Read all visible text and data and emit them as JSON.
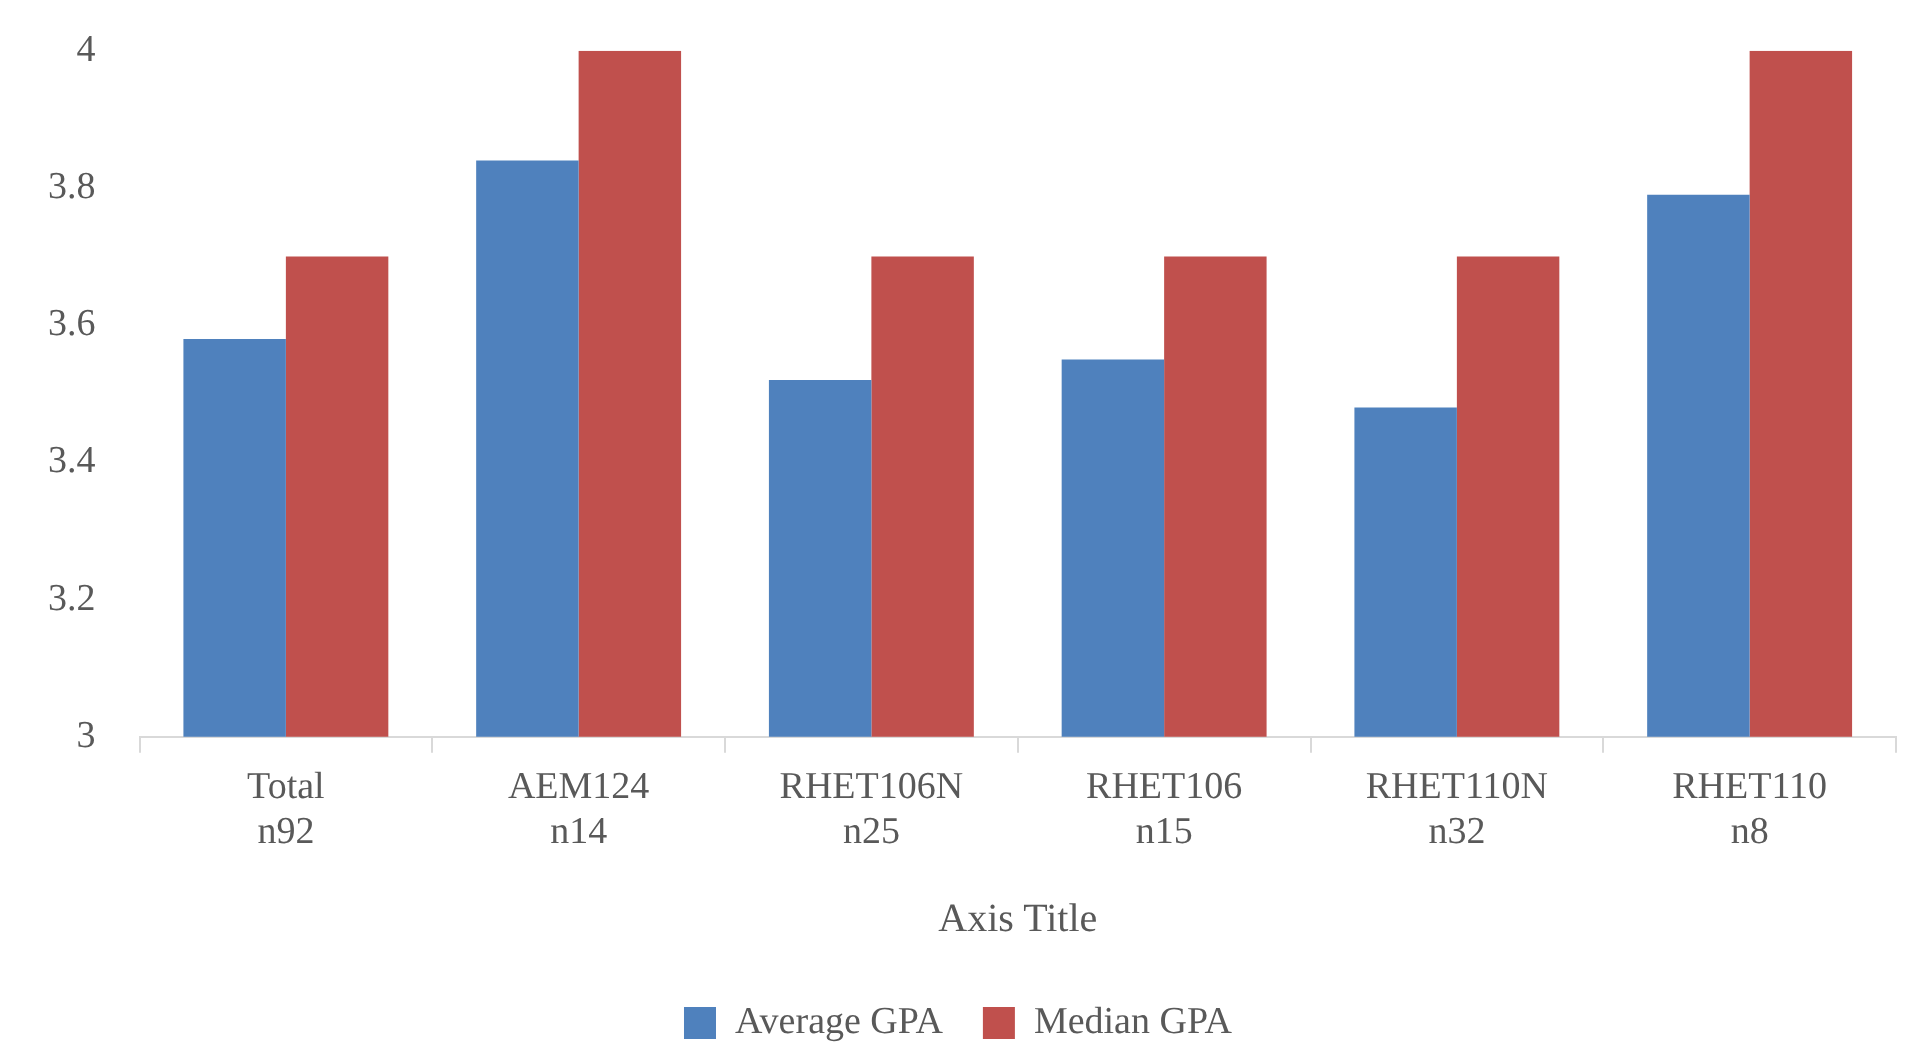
{
  "chart_data": {
    "type": "bar",
    "xlabel": "Axis Title",
    "categories": [
      "Total\nn92",
      "AEM124\nn14",
      "RHET106N\nn25",
      "RHET106\nn15",
      "RHET110N\nn32",
      "RHET110\nn8"
    ],
    "series": [
      {
        "name": "Average GPA",
        "color": "#4f81bd",
        "values": [
          3.58,
          3.84,
          3.52,
          3.55,
          3.48,
          3.79
        ]
      },
      {
        "name": "Median GPA",
        "color": "#c0504d",
        "values": [
          3.7,
          4,
          3.7,
          3.7,
          3.7,
          4
        ]
      }
    ],
    "ylim": [
      3,
      4
    ],
    "yticks": [
      3,
      3.2,
      3.4,
      3.6,
      3.8,
      4
    ],
    "grid": false,
    "legend": "bottom"
  }
}
